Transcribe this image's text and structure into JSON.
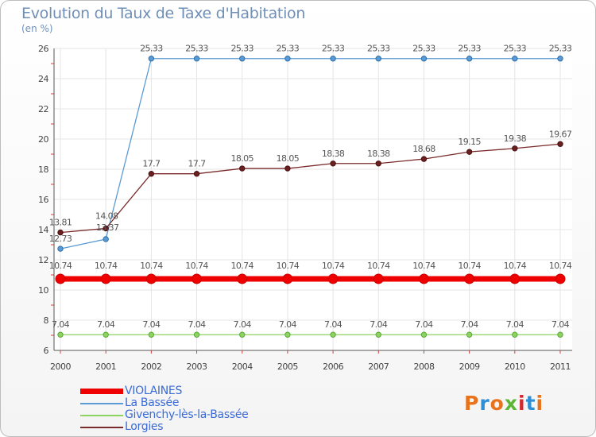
{
  "chart_title": "Evolution du Taux de Taxe d'Habitation",
  "chart_subtitle": "(en %)",
  "brand": {
    "text": "Proxiti",
    "letter_colors": [
      "#e8731c",
      "#2f8fd6",
      "#e8731c",
      "#5db637",
      "#d7282f",
      "#2f8fd6",
      "#e8731c"
    ]
  },
  "chart_data": {
    "type": "line",
    "title": "Evolution du Taux de Taxe d'Habitation",
    "subtitle": "(en %)",
    "x": [
      "2000",
      "2001",
      "2002",
      "2003",
      "2004",
      "2005",
      "2006",
      "2007",
      "2008",
      "2009",
      "2010",
      "2011"
    ],
    "ylim": [
      6,
      26
    ],
    "yticks": [
      "6",
      "8",
      "10",
      "12",
      "14",
      "16",
      "18",
      "20",
      "22",
      "24",
      "26"
    ],
    "grid": true,
    "legend_position": "bottom-left",
    "series": [
      {
        "name": "VIOLAINES",
        "color": "#ee0000",
        "values": [
          10.74,
          10.74,
          10.74,
          10.74,
          10.74,
          10.74,
          10.74,
          10.74,
          10.74,
          10.74,
          10.74,
          10.74
        ],
        "labels": [
          "10.74",
          "10.74",
          "10.74",
          "10.74",
          "10.74",
          "10.74",
          "10.74",
          "10.74",
          "10.74",
          "10.74",
          "10.74",
          "10.74"
        ]
      },
      {
        "name": "La Bassée",
        "color": "#5b9bd5",
        "values": [
          12.73,
          13.37,
          25.33,
          25.33,
          25.33,
          25.33,
          25.33,
          25.33,
          25.33,
          25.33,
          25.33,
          25.33
        ],
        "labels": [
          "12.73",
          "13.37",
          "25.33",
          "25.33",
          "25.33",
          "25.33",
          "25.33",
          "25.33",
          "25.33",
          "25.33",
          "25.33",
          "25.33"
        ]
      },
      {
        "name": "Givenchy-lès-la-Bassée",
        "color": "#8dd35f",
        "values": [
          7.04,
          7.04,
          7.04,
          7.04,
          7.04,
          7.04,
          7.04,
          7.04,
          7.04,
          7.04,
          7.04,
          7.04
        ],
        "labels": [
          "7.04",
          "7.04",
          "7.04",
          "7.04",
          "7.04",
          "7.04",
          "7.04",
          "7.04",
          "7.04",
          "7.04",
          "7.04",
          "7.04"
        ]
      },
      {
        "name": "Lorgies",
        "color": "#7a2a2a",
        "values": [
          13.81,
          14.08,
          17.7,
          17.7,
          18.05,
          18.05,
          18.38,
          18.38,
          18.68,
          19.15,
          19.38,
          19.67
        ],
        "labels": [
          "13.81",
          "14.08",
          "17.7",
          "17.7",
          "18.05",
          "18.05",
          "18.38",
          "18.38",
          "18.68",
          "19.15",
          "19.38",
          "19.67"
        ]
      }
    ]
  }
}
